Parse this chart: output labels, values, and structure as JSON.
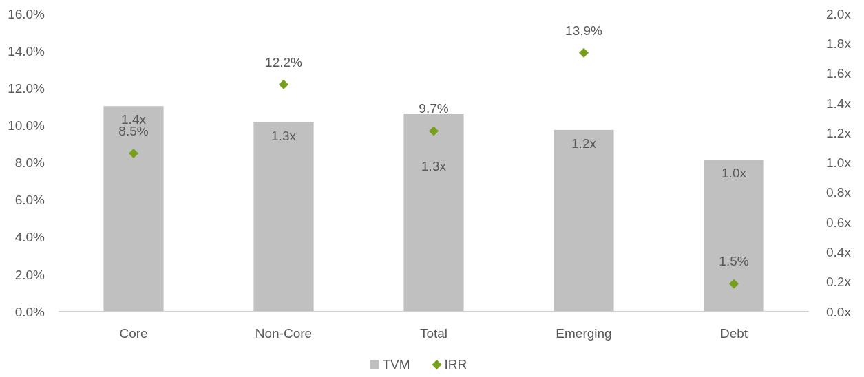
{
  "chart_data": {
    "type": "bar",
    "categories": [
      "Core",
      "Non-Core",
      "Total",
      "Emerging",
      "Debt"
    ],
    "series": [
      {
        "name": "TVM",
        "axis": "y2",
        "color": "#bfc0bf",
        "values": [
          1.38,
          1.27,
          1.33,
          1.22,
          1.02
        ],
        "value_labels": [
          "1.4x",
          "1.3x",
          "1.3x",
          "1.2x",
          "1.0x"
        ]
      },
      {
        "name": "IRR",
        "type": "scatter",
        "color": "#76a01b",
        "values": [
          8.5,
          12.2,
          9.7,
          13.9,
          1.5
        ],
        "value_labels": [
          "8.5%",
          "12.2%",
          "9.7%",
          "13.9%",
          "1.5%"
        ]
      }
    ],
    "marker": "diamond",
    "ylim": [
      0,
      16
    ],
    "yticks": [
      {
        "value": 0,
        "label": "0.0%"
      },
      {
        "value": 2,
        "label": "2.0%"
      },
      {
        "value": 4,
        "label": "4.0%"
      },
      {
        "value": 6,
        "label": "6.0%"
      },
      {
        "value": 8,
        "label": "8.0%"
      },
      {
        "value": 10,
        "label": "10.0%"
      },
      {
        "value": 12,
        "label": "12.0%"
      },
      {
        "value": 14,
        "label": "14.0%"
      },
      {
        "value": 16,
        "label": "16.0%"
      }
    ],
    "y2lim": [
      0,
      2
    ],
    "y2ticks": [
      {
        "value": 0,
        "label": "0.0x"
      },
      {
        "value": 0.2,
        "label": "0.2x"
      },
      {
        "value": 0.4,
        "label": "0.4x"
      },
      {
        "value": 0.6,
        "label": "0.6x"
      },
      {
        "value": 0.8,
        "label": "0.8x"
      },
      {
        "value": 1,
        "label": "1.0x"
      },
      {
        "value": 1.2,
        "label": "1.2x"
      },
      {
        "value": 1.4,
        "label": "1.4x"
      },
      {
        "value": 1.6,
        "label": "1.6x"
      },
      {
        "value": 1.8,
        "label": "1.8x"
      },
      {
        "value": 2,
        "label": "2.0x"
      }
    ],
    "grid": false,
    "legend": "bottom"
  }
}
